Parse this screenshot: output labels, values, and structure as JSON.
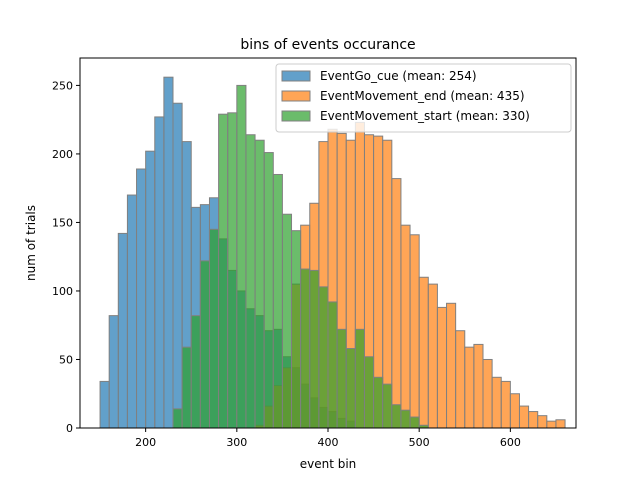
{
  "chart_data": {
    "type": "bar",
    "title": "bins of events occurance",
    "xlabel": "event bin",
    "ylabel": "num of trials",
    "xlim": [
      128,
      672
    ],
    "ylim": [
      0,
      270
    ],
    "xticks": [
      200,
      300,
      400,
      500,
      600
    ],
    "yticks": [
      0,
      50,
      100,
      150,
      200,
      250
    ],
    "grid": false,
    "legend_placement": "top-right",
    "edge_color": "#808080",
    "opacity": 0.7,
    "bin_width": 10,
    "series": [
      {
        "name": "EventGo_cue (mean: 254)",
        "color": "#1f77b4",
        "bins": [
          [
            150,
            34
          ],
          [
            160,
            82
          ],
          [
            170,
            142
          ],
          [
            180,
            170
          ],
          [
            190,
            189
          ],
          [
            200,
            202
          ],
          [
            210,
            227
          ],
          [
            220,
            256
          ],
          [
            230,
            237
          ],
          [
            240,
            209
          ],
          [
            250,
            161
          ],
          [
            260,
            163
          ],
          [
            270,
            168
          ],
          [
            280,
            138
          ],
          [
            290,
            115
          ],
          [
            300,
            100
          ],
          [
            310,
            87
          ],
          [
            320,
            82
          ],
          [
            330,
            71
          ],
          [
            340,
            72
          ],
          [
            350,
            52
          ],
          [
            360,
            44
          ],
          [
            370,
            32
          ],
          [
            380,
            22
          ],
          [
            390,
            15
          ],
          [
            400,
            12
          ],
          [
            410,
            7
          ],
          [
            420,
            5
          ]
        ]
      },
      {
        "name": "EventMovement_end (mean: 435)",
        "color": "#ff7f0e",
        "bins": [
          [
            320,
            2
          ],
          [
            330,
            16
          ],
          [
            340,
            31
          ],
          [
            350,
            44
          ],
          [
            360,
            105
          ],
          [
            370,
            148
          ],
          [
            380,
            164
          ],
          [
            390,
            209
          ],
          [
            400,
            218
          ],
          [
            410,
            215
          ],
          [
            420,
            210
          ],
          [
            430,
            223
          ],
          [
            440,
            214
          ],
          [
            450,
            213
          ],
          [
            460,
            210
          ],
          [
            470,
            182
          ],
          [
            480,
            148
          ],
          [
            490,
            141
          ],
          [
            500,
            110
          ],
          [
            510,
            105
          ],
          [
            520,
            88
          ],
          [
            530,
            91
          ],
          [
            540,
            71
          ],
          [
            550,
            59
          ],
          [
            560,
            61
          ],
          [
            570,
            50
          ],
          [
            580,
            37
          ],
          [
            590,
            34
          ],
          [
            600,
            25
          ],
          [
            610,
            16
          ],
          [
            620,
            12
          ],
          [
            630,
            9
          ],
          [
            640,
            5
          ],
          [
            650,
            6
          ]
        ]
      },
      {
        "name": "EventMovement_start (mean: 330)",
        "color": "#2ca02c",
        "bins": [
          [
            230,
            14
          ],
          [
            240,
            59
          ],
          [
            250,
            82
          ],
          [
            260,
            122
          ],
          [
            270,
            145
          ],
          [
            280,
            229
          ],
          [
            290,
            230
          ],
          [
            300,
            250
          ],
          [
            310,
            214
          ],
          [
            320,
            210
          ],
          [
            330,
            201
          ],
          [
            340,
            185
          ],
          [
            350,
            156
          ],
          [
            360,
            144
          ],
          [
            370,
            116
          ],
          [
            380,
            115
          ],
          [
            390,
            103
          ],
          [
            400,
            92
          ],
          [
            410,
            72
          ],
          [
            420,
            58
          ],
          [
            430,
            72
          ],
          [
            440,
            52
          ],
          [
            450,
            37
          ],
          [
            460,
            32
          ],
          [
            470,
            17
          ],
          [
            480,
            13
          ],
          [
            490,
            8
          ],
          [
            500,
            2
          ]
        ]
      }
    ]
  }
}
